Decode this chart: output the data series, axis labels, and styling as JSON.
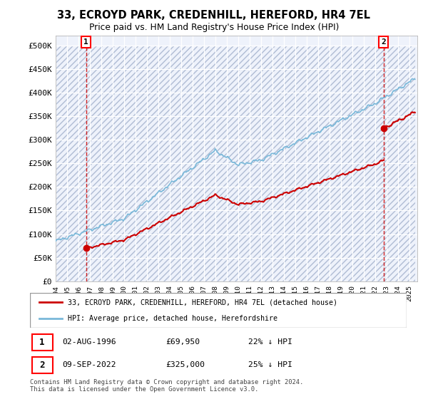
{
  "title": "33, ECROYD PARK, CREDENHILL, HEREFORD, HR4 7EL",
  "subtitle": "Price paid vs. HM Land Registry's House Price Index (HPI)",
  "sale1_date": "02-AUG-1996",
  "sale1_price": 69950,
  "sale1_label": "22% ↓ HPI",
  "sale2_date": "09-SEP-2022",
  "sale2_price": 325000,
  "sale2_label": "25% ↓ HPI",
  "legend_line1": "33, ECROYD PARK, CREDENHILL, HEREFORD, HR4 7EL (detached house)",
  "legend_line2": "HPI: Average price, detached house, Herefordshire",
  "footer": "Contains HM Land Registry data © Crown copyright and database right 2024.\nThis data is licensed under the Open Government Licence v3.0.",
  "hpi_color": "#7ab8d9",
  "sale_color": "#cc0000",
  "bg_color": "#eef2fb",
  "grid_color": "#c8d0e0",
  "ylim_min": 0,
  "ylim_max": 500000,
  "xlabel_start_year": 1994,
  "xlabel_end_year": 2025
}
